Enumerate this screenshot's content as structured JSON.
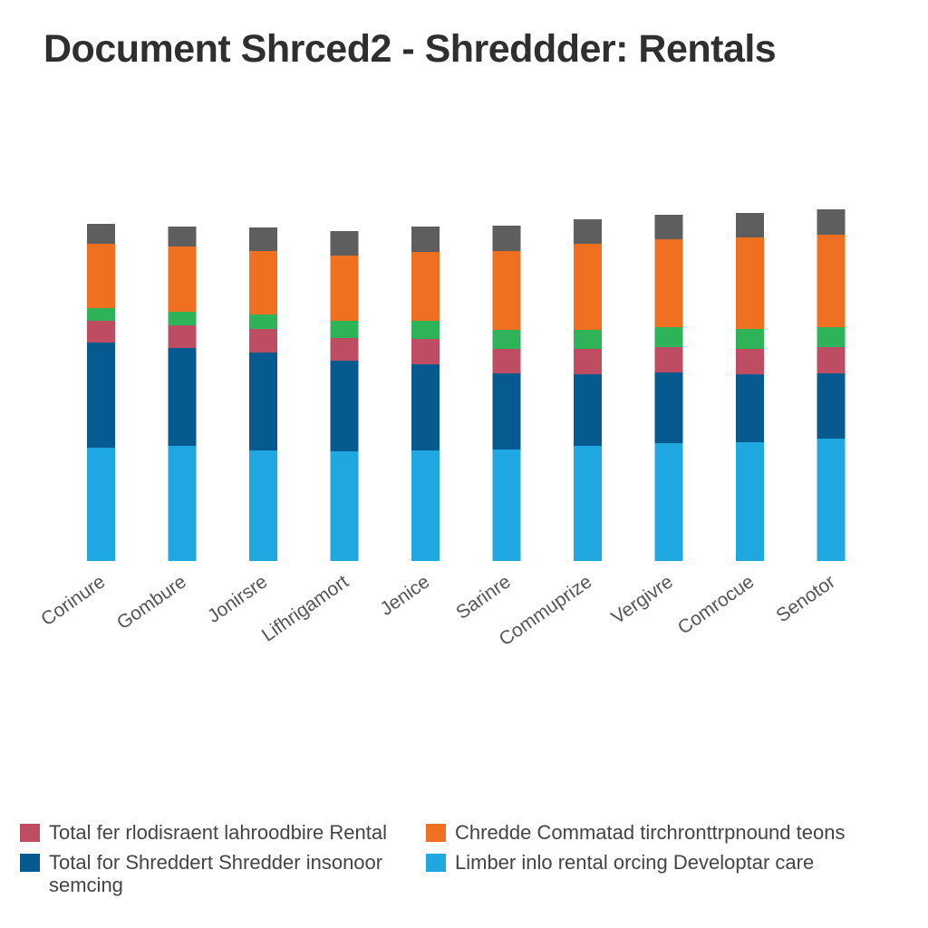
{
  "chart_data": {
    "type": "bar",
    "stacked": true,
    "title": "Document Shrced2 - Shreddder: Rentals",
    "categories": [
      "Corinure",
      "Gombure",
      "Jonirsre",
      "Lifhrigamort",
      "Jenice",
      "Sarinre",
      "Commuprize",
      "Vergivre",
      "Comrocue",
      "Senotor"
    ],
    "series": [
      {
        "name": "Limber inlo rental orcing Developtar care",
        "color": "#1ea7e1",
        "values": [
          125,
          127,
          122,
          121,
          122,
          123,
          127,
          130,
          131,
          135
        ]
      },
      {
        "name": "Total for Shreddert Shredder insonoor semcing",
        "color": "#065a90",
        "values": [
          116,
          108,
          108,
          100,
          95,
          84,
          79,
          78,
          75,
          72
        ]
      },
      {
        "name": "Total fer rlodisraent lahroodbire Rental",
        "color": "#be4d63",
        "values": [
          24,
          25,
          26,
          25,
          28,
          27,
          28,
          28,
          28,
          29
        ]
      },
      {
        "name": "",
        "color": "#2fb358",
        "values": [
          14,
          15,
          16,
          19,
          20,
          21,
          21,
          22,
          22,
          22
        ]
      },
      {
        "name": "Chredde Commatad tirchronttrpnound teons",
        "color": "#ee7020",
        "values": [
          71,
          72,
          70,
          72,
          76,
          87,
          95,
          97,
          101,
          102
        ]
      },
      {
        "name": "",
        "color": "#5e5e5e",
        "values": [
          22,
          22,
          26,
          27,
          28,
          28,
          27,
          27,
          27,
          28
        ]
      }
    ],
    "ylim": [
      0,
      390
    ],
    "grid": false,
    "legend_position": "bottom"
  },
  "legend": [
    {
      "label": "Total fer rlodisraent lahroodbire Rental",
      "color": "#be4d63"
    },
    {
      "label": "Chredde Commatad tirchronttrpnound teons",
      "color": "#ee7020"
    },
    {
      "label": "Total for Shreddert Shredder insonoor semcing",
      "color": "#065a90"
    },
    {
      "label": "Limber inlo rental orcing Developtar care",
      "color": "#1ea7e1"
    }
  ]
}
